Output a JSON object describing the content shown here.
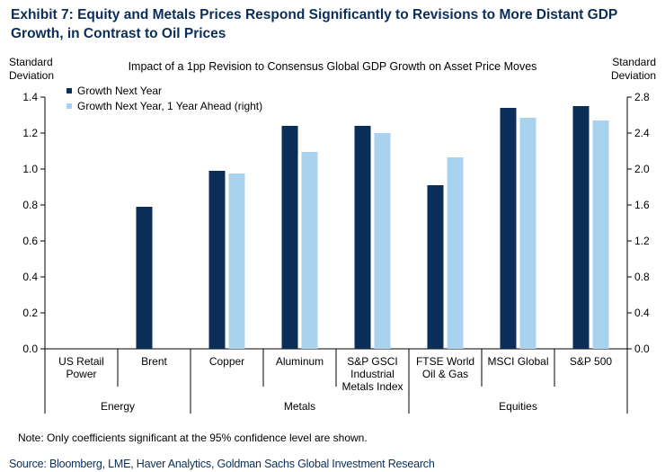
{
  "header": {
    "title": "Exhibit 7: Equity and Metals Prices Respond Significantly to Revisions to More Distant GDP Growth, in Contrast to Oil Prices"
  },
  "chart_data": {
    "type": "bar",
    "title": "Impact of a 1pp Revision to Consensus Global GDP Growth on Asset Price Moves",
    "ylabel_left": [
      "Standard",
      "Deviation"
    ],
    "ylabel_right": [
      "Standard",
      "Deviation"
    ],
    "ylim_left": [
      0,
      1.4
    ],
    "ylim_right": [
      0,
      2.8
    ],
    "yticks_left": [
      "0.0",
      "0.2",
      "0.4",
      "0.6",
      "0.8",
      "1.0",
      "1.2",
      "1.4"
    ],
    "yticks_right": [
      "0.0",
      "0.4",
      "0.8",
      "1.2",
      "1.6",
      "2.0",
      "2.4",
      "2.8"
    ],
    "categories": [
      [
        "US Retail",
        "Power"
      ],
      [
        "Brent"
      ],
      [
        "Copper"
      ],
      [
        "Aluminum"
      ],
      [
        "S&P GSCI",
        "Industrial",
        "Metals Index"
      ],
      [
        "FTSE World",
        "Oil & Gas"
      ],
      [
        "MSCI Global"
      ],
      [
        "S&P 500"
      ]
    ],
    "groups": [
      {
        "name": "Energy",
        "span": [
          0,
          1
        ]
      },
      {
        "name": "Metals",
        "span": [
          2,
          4
        ]
      },
      {
        "name": "Equities",
        "span": [
          5,
          7
        ]
      }
    ],
    "legend_position": "top-left",
    "grid": false,
    "series": [
      {
        "name": "Growth Next Year",
        "axis": "left",
        "color": "#0b2e59",
        "values": [
          null,
          0.79,
          0.99,
          1.24,
          1.24,
          0.91,
          1.34,
          1.35
        ]
      },
      {
        "name": "Growth Next Year, 1 Year Ahead (right)",
        "axis": "right",
        "color": "#a9d2ef",
        "values": [
          null,
          null,
          1.95,
          2.19,
          2.4,
          2.13,
          2.57,
          2.54
        ]
      }
    ]
  },
  "footer": {
    "note": "Note: Only coefficients significant at the 95% confidence level are shown.",
    "source": "Source: Bloomberg, LME, Haver Analytics, Goldman Sachs Global Investment Research"
  }
}
